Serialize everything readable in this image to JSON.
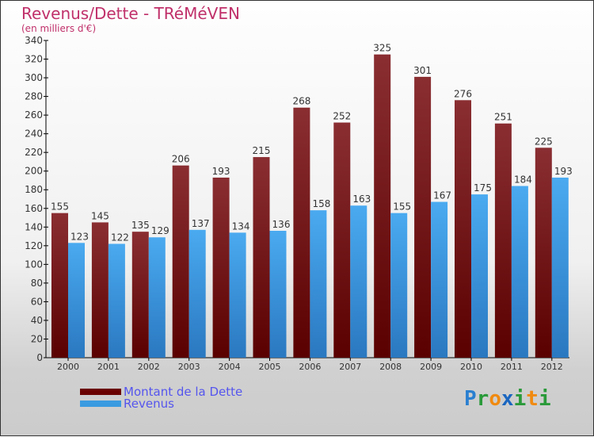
{
  "chart_data": {
    "type": "bar",
    "title": "Revenus/Dette - TRéMéVEN",
    "subtitle": "(en milliers d'€)",
    "categories": [
      "2000",
      "2001",
      "2002",
      "2003",
      "2004",
      "2005",
      "2006",
      "2007",
      "2008",
      "2009",
      "2010",
      "2011",
      "2012"
    ],
    "series": [
      {
        "name": "Montant de la Dette",
        "color": "#7a1f24",
        "values": [
          155,
          145,
          135,
          206,
          193,
          215,
          268,
          252,
          325,
          301,
          276,
          251,
          225
        ]
      },
      {
        "name": "Revenus",
        "color": "#3a9be0",
        "values": [
          123,
          122,
          129,
          137,
          134,
          136,
          158,
          163,
          155,
          167,
          175,
          184,
          193
        ]
      }
    ],
    "ylim": [
      0,
      340
    ],
    "yticks": [
      0,
      20,
      40,
      60,
      80,
      100,
      120,
      140,
      160,
      180,
      200,
      220,
      240,
      260,
      280,
      300,
      320,
      340
    ],
    "legend_position": "bottom-left"
  },
  "logo": "Proxiti"
}
